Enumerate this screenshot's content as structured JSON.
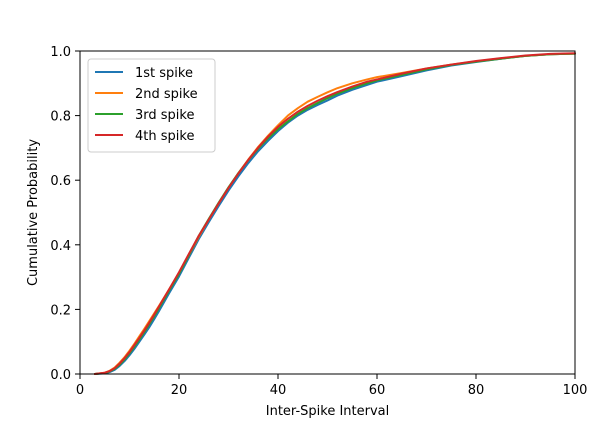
{
  "chart_data": {
    "type": "line",
    "title": "",
    "xlabel": "Inter-Spike Interval",
    "ylabel": "Cumulative Probability",
    "xlim": [
      0,
      100
    ],
    "ylim": [
      0,
      1.0
    ],
    "xticks": [
      0,
      20,
      40,
      60,
      80,
      100
    ],
    "yticks": [
      0.0,
      0.2,
      0.4,
      0.6,
      0.8,
      1.0
    ],
    "xtick_labels": [
      "0",
      "20",
      "40",
      "60",
      "80",
      "100"
    ],
    "ytick_labels": [
      "0.0",
      "0.2",
      "0.4",
      "0.6",
      "0.8",
      "1.0"
    ],
    "grid": false,
    "legend_position": "top-left",
    "series": [
      {
        "name": "1st spike",
        "color": "#1f77b4",
        "x": [
          3,
          5,
          6,
          7,
          8,
          9,
          10,
          11,
          12,
          13,
          14,
          15,
          16,
          18,
          20,
          22,
          24,
          26,
          28,
          30,
          32,
          34,
          36,
          38,
          40,
          42,
          44,
          46,
          48,
          50,
          52,
          55,
          58,
          60,
          65,
          70,
          75,
          80,
          85,
          90,
          95,
          100
        ],
        "y": [
          0.0,
          0.002,
          0.006,
          0.013,
          0.025,
          0.04,
          0.058,
          0.078,
          0.1,
          0.122,
          0.145,
          0.17,
          0.196,
          0.25,
          0.302,
          0.36,
          0.418,
          0.47,
          0.52,
          0.568,
          0.612,
          0.653,
          0.69,
          0.722,
          0.752,
          0.778,
          0.8,
          0.818,
          0.833,
          0.847,
          0.862,
          0.88,
          0.895,
          0.905,
          0.922,
          0.94,
          0.955,
          0.966,
          0.976,
          0.985,
          0.99,
          0.992
        ]
      },
      {
        "name": "2nd spike",
        "color": "#ff7f0e",
        "x": [
          3,
          5,
          6,
          7,
          8,
          9,
          10,
          11,
          12,
          13,
          14,
          15,
          16,
          18,
          20,
          22,
          24,
          26,
          28,
          30,
          32,
          34,
          36,
          38,
          40,
          42,
          44,
          46,
          48,
          50,
          52,
          55,
          58,
          60,
          65,
          70,
          75,
          80,
          85,
          90,
          95,
          100
        ],
        "y": [
          0.0,
          0.004,
          0.01,
          0.02,
          0.035,
          0.052,
          0.072,
          0.094,
          0.117,
          0.14,
          0.164,
          0.188,
          0.212,
          0.262,
          0.312,
          0.368,
          0.425,
          0.478,
          0.528,
          0.577,
          0.622,
          0.664,
          0.703,
          0.738,
          0.77,
          0.8,
          0.823,
          0.843,
          0.858,
          0.872,
          0.885,
          0.9,
          0.912,
          0.919,
          0.932,
          0.946,
          0.958,
          0.968,
          0.977,
          0.985,
          0.99,
          0.992
        ]
      },
      {
        "name": "3rd spike",
        "color": "#2ca02c",
        "x": [
          3,
          5,
          6,
          7,
          8,
          9,
          10,
          11,
          12,
          13,
          14,
          15,
          16,
          18,
          20,
          22,
          24,
          26,
          28,
          30,
          32,
          34,
          36,
          38,
          40,
          42,
          44,
          46,
          48,
          50,
          52,
          55,
          58,
          60,
          65,
          70,
          75,
          80,
          85,
          90,
          95,
          100
        ],
        "y": [
          0.0,
          0.003,
          0.008,
          0.016,
          0.029,
          0.045,
          0.064,
          0.085,
          0.107,
          0.13,
          0.154,
          0.179,
          0.205,
          0.258,
          0.31,
          0.368,
          0.428,
          0.48,
          0.53,
          0.578,
          0.622,
          0.662,
          0.698,
          0.73,
          0.758,
          0.782,
          0.805,
          0.823,
          0.839,
          0.854,
          0.868,
          0.885,
          0.9,
          0.909,
          0.926,
          0.943,
          0.957,
          0.967,
          0.976,
          0.985,
          0.99,
          0.992
        ]
      },
      {
        "name": "4th spike",
        "color": "#d62728",
        "x": [
          3,
          5,
          6,
          7,
          8,
          9,
          10,
          11,
          12,
          13,
          14,
          15,
          16,
          18,
          20,
          22,
          24,
          26,
          28,
          30,
          32,
          34,
          36,
          38,
          40,
          42,
          44,
          46,
          48,
          50,
          52,
          55,
          58,
          60,
          65,
          70,
          75,
          80,
          85,
          90,
          95,
          100
        ],
        "y": [
          0.0,
          0.004,
          0.009,
          0.018,
          0.032,
          0.049,
          0.068,
          0.09,
          0.112,
          0.135,
          0.159,
          0.184,
          0.21,
          0.262,
          0.315,
          0.372,
          0.428,
          0.478,
          0.528,
          0.576,
          0.621,
          0.663,
          0.701,
          0.735,
          0.765,
          0.79,
          0.812,
          0.83,
          0.846,
          0.86,
          0.873,
          0.89,
          0.905,
          0.912,
          0.93,
          0.946,
          0.958,
          0.969,
          0.978,
          0.986,
          0.991,
          0.993
        ]
      }
    ]
  }
}
